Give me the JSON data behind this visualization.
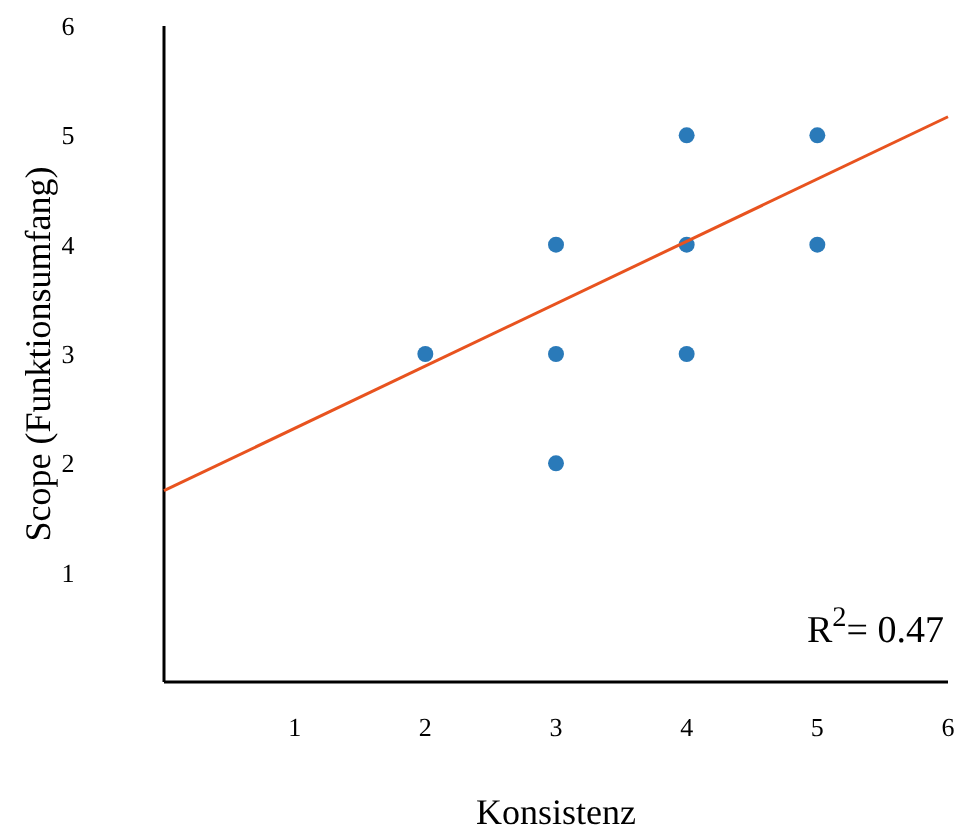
{
  "chart_data": {
    "type": "scatter",
    "xlabel": "Konsistenz",
    "ylabel": "Scope (Funktionsumfang)",
    "xlim": [
      0,
      6
    ],
    "ylim": [
      0,
      6
    ],
    "xticks": [
      1,
      2,
      3,
      4,
      5,
      6
    ],
    "yticks": [
      1,
      2,
      3,
      4,
      5,
      6
    ],
    "grid": false,
    "series": [
      {
        "marker": "circle",
        "color": "#2a7ab9",
        "x": [
          2,
          3,
          3,
          3,
          4,
          4,
          4,
          5,
          5
        ],
        "values": [
          3,
          4,
          3,
          2,
          5,
          4,
          3,
          5,
          4
        ]
      },
      {
        "type": "line",
        "marker": "none",
        "color": "#e8531f",
        "x": [
          0,
          6
        ],
        "values": [
          1.75,
          5.17
        ]
      }
    ],
    "annotations": [
      "R$^{2}$= 0.47"
    ]
  }
}
